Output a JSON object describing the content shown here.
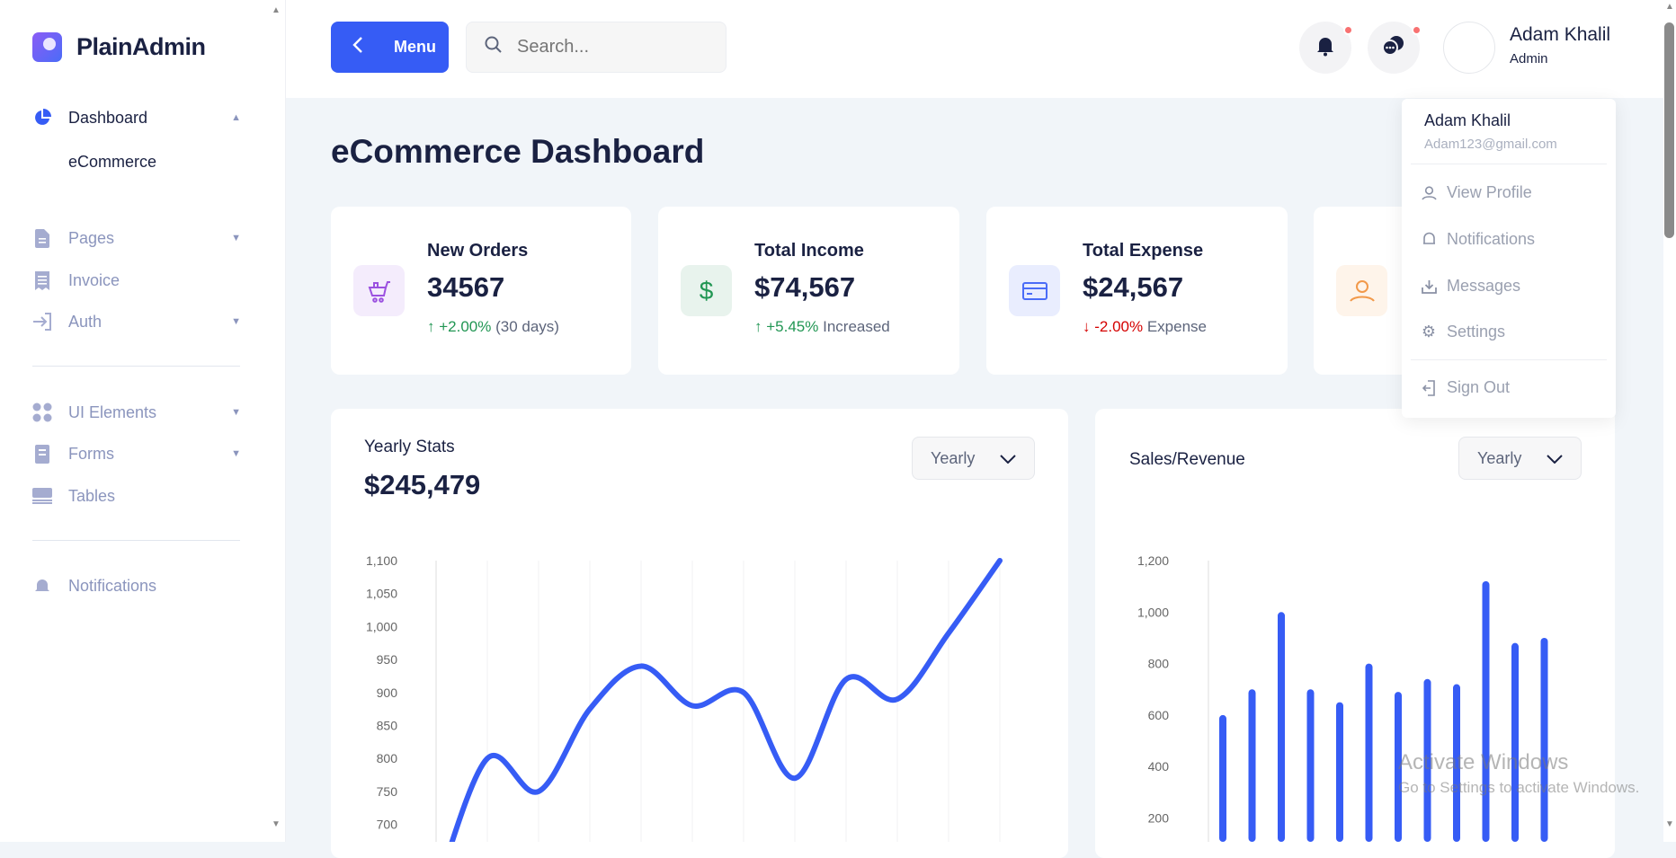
{
  "brand": {
    "name": "PlainAdmin"
  },
  "sidebar": {
    "items": [
      {
        "label": "Dashboard",
        "icon": "pie-chart-icon",
        "active": true,
        "chevron": "up"
      },
      {
        "label": "eCommerce",
        "sub": true
      },
      {
        "label": "Pages",
        "icon": "document-icon",
        "chevron": "down"
      },
      {
        "label": "Invoice",
        "icon": "receipt-icon"
      },
      {
        "label": "Auth",
        "icon": "login-icon",
        "chevron": "down"
      },
      {
        "label": "UI Elements",
        "icon": "grid-icon",
        "chevron": "down"
      },
      {
        "label": "Forms",
        "icon": "form-icon",
        "chevron": "down"
      },
      {
        "label": "Tables",
        "icon": "table-icon"
      },
      {
        "label": "Notifications",
        "icon": "bell-icon"
      }
    ]
  },
  "topbar": {
    "menu_label": "Menu",
    "search_placeholder": "Search...",
    "user_name": "Adam Khalil",
    "user_role": "Admin"
  },
  "dropdown": {
    "name": "Adam Khalil",
    "email": "Adam123@gmail.com",
    "items": [
      "View Profile",
      "Notifications",
      "Messages",
      "Settings"
    ],
    "signout": "Sign Out"
  },
  "page": {
    "title": "eCommerce Dashboard"
  },
  "stats": [
    {
      "label": "New Orders",
      "value": "34567",
      "change": "+2.00%",
      "note": "(30 days)",
      "dir": "up",
      "color": "#9b51e0"
    },
    {
      "label": "Total Income",
      "value": "$74,567",
      "change": "+5.45%",
      "note": "Increased",
      "dir": "up",
      "color": "#219653"
    },
    {
      "label": "Total Expense",
      "value": "$24,567",
      "change": "-2.00%",
      "note": "Expense",
      "dir": "down",
      "color": "#4a6cf7"
    },
    {
      "label": "",
      "value": "",
      "change": "",
      "note": "",
      "dir": "",
      "color": "#f2994a"
    }
  ],
  "chart_data": [
    {
      "type": "line",
      "title": "Yearly Stats",
      "total": "$245,479",
      "select": "Yearly",
      "ylim": [
        700,
        1100
      ],
      "yticks": [
        "1,100",
        "1,050",
        "1,000",
        "950",
        "900",
        "850",
        "800",
        "750",
        "700"
      ],
      "values": [
        600,
        800,
        750,
        875,
        940,
        880,
        900,
        770,
        920,
        890,
        990,
        1100
      ],
      "color": "#365cf5",
      "grid": "vertical"
    },
    {
      "type": "bar",
      "title": "Sales/Revenue",
      "select": "Yearly",
      "ylim": [
        200,
        1200
      ],
      "yticks": [
        "1,200",
        "1,000",
        "800",
        "600",
        "400",
        "200"
      ],
      "values": [
        600,
        700,
        1000,
        700,
        650,
        800,
        690,
        740,
        720,
        1120,
        880,
        900
      ],
      "color": "#365cf5"
    }
  ],
  "watermark": {
    "title": "Activate Windows",
    "subtitle": "Go to Settings to activate Windows."
  }
}
